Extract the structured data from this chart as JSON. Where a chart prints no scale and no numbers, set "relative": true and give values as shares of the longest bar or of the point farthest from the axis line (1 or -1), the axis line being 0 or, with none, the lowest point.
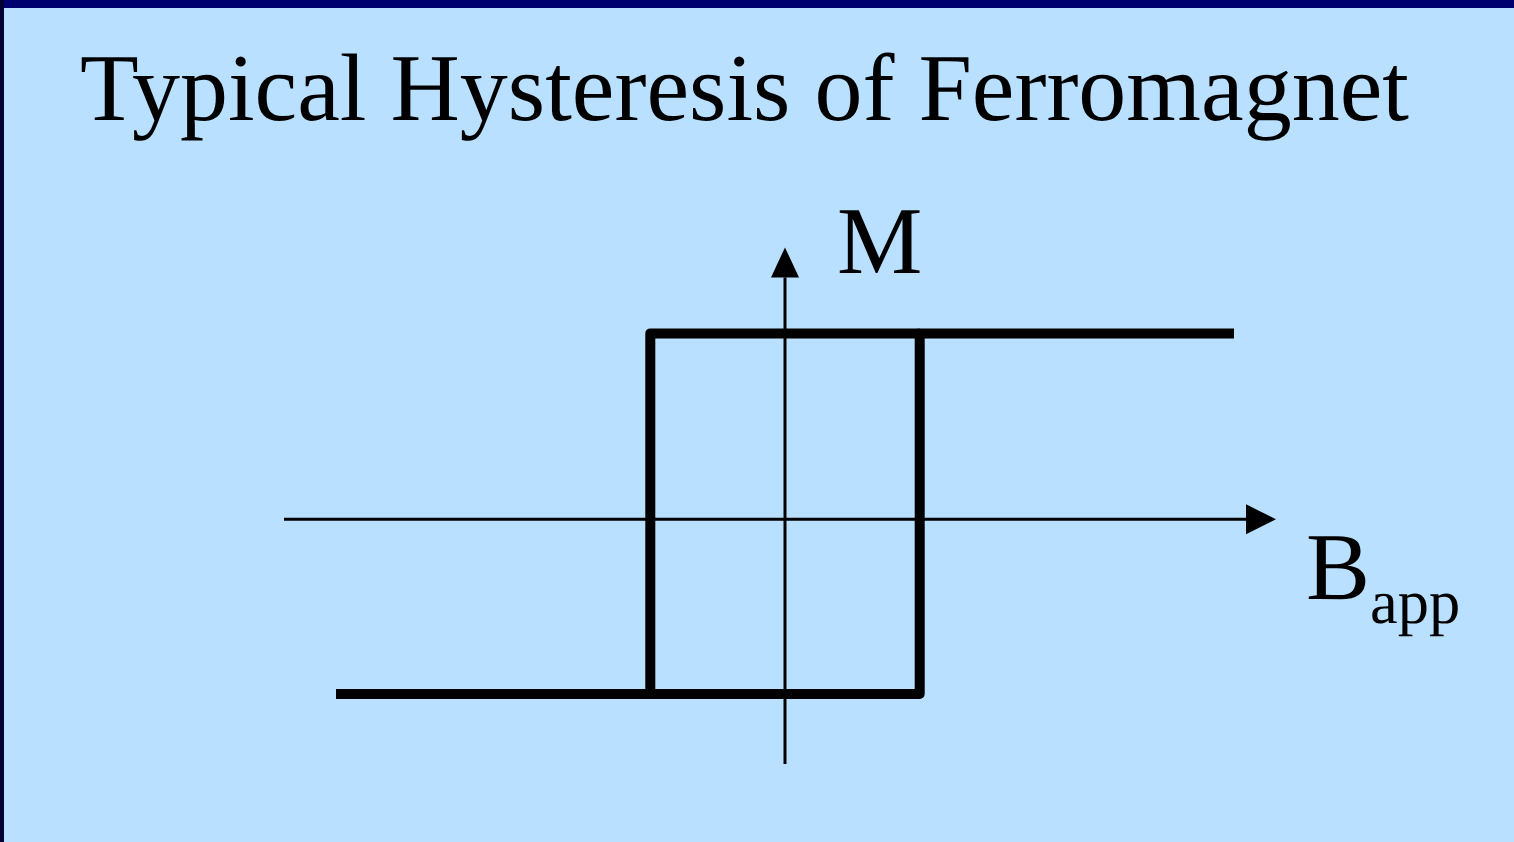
{
  "chart_data": {
    "type": "step",
    "title": "Typical Hysteresis of Ferromagnet",
    "xlabel": "B$_{app}$",
    "ylabel": "M",
    "relative": true,
    "line_style": "solid",
    "categories": [
      null,
      null,
      null,
      null,
      null,
      null,
      null,
      null,
      null,
      null,
      null,
      null,
      null,
      null,
      null,
      null,
      null,
      null,
      null,
      null,
      null
    ],
    "series": [
      {
        "color": "#000000",
        "values": [
          -0.94,
          -0.94,
          -0.94,
          -0.94,
          -0.94,
          -0.94,
          -0.94,
          -0.94,
          -0.94,
          -0.94,
          -0.94,
          -0.94,
          -0.94,
          -0.94,
          1,
          1,
          1,
          1,
          1,
          1,
          1
        ]
      },
      {
        "color": "#000000",
        "values": [
          null,
          null,
          null,
          null,
          null,
          null,
          null,
          -0.94,
          1,
          1,
          1,
          1,
          1,
          1,
          null,
          null,
          null,
          null,
          null,
          null,
          null
        ]
      }
    ]
  }
}
